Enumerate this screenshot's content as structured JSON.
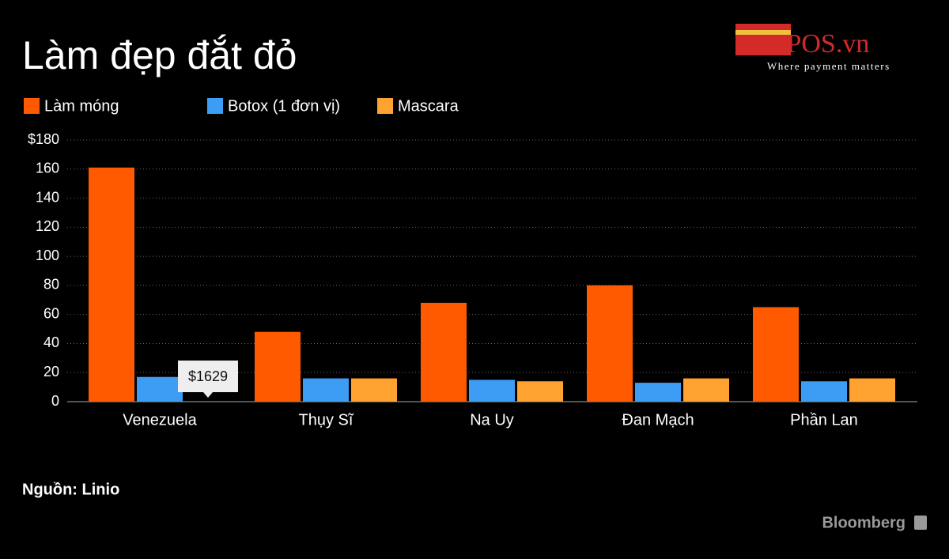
{
  "chart_data": {
    "type": "bar",
    "title": "Làm đẹp đắt đỏ",
    "source": "Nguồn: Linio",
    "branding": {
      "logo": "mPOS.vn",
      "tagline": "Where payment matters",
      "publisher": "Bloomberg"
    },
    "categories": [
      "Venezuela",
      "Thụy Sĩ",
      "Na Uy",
      "Đan Mạch",
      "Phần Lan"
    ],
    "series": [
      {
        "name": "Làm móng",
        "color": "#ff5a00",
        "values": [
          161,
          48,
          68,
          80,
          65
        ]
      },
      {
        "name": "Botox (1 đơn vị)",
        "color": "#3d9df5",
        "values": [
          17,
          16,
          15,
          13,
          14
        ]
      },
      {
        "name": "Mascara",
        "color": "#ffa230",
        "values": [
          1629,
          16,
          14,
          16,
          16
        ],
        "value_labels": [
          "$1629",
          null,
          null,
          null,
          null
        ]
      }
    ],
    "ylim": [
      0,
      180
    ],
    "yticks": [
      0,
      20,
      40,
      60,
      80,
      100,
      120,
      140,
      160,
      {
        "value": 180,
        "label": "$180"
      }
    ],
    "grid": true
  }
}
